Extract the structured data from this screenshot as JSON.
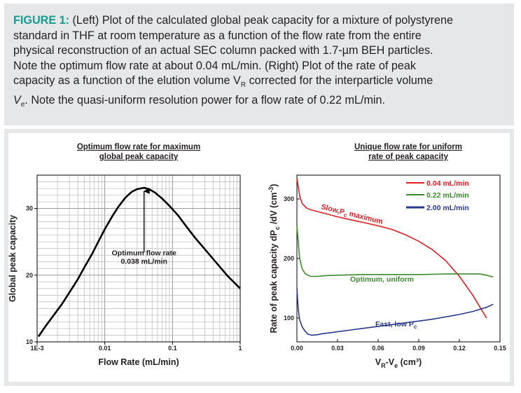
{
  "caption": {
    "label": "FIGURE 1:",
    "lines": [
      " (Left) Plot of the calculated global peak capacity for a mixture of polystyrene",
      "standard in THF at room temperature as a function of the flow rate from the entire",
      "physical reconstruction of an actual SEC column packed with 1.7-µm BEH particles.",
      "Note the optimum flow rate at about 0.04 mL/min. (Right) Plot of the rate of peak",
      "capacity as a function of the elution volume V",
      "R",
      " corrected for the interparticle volume",
      "V",
      "e",
      ". Note the quasi-uniform resolution power for a flow rate of 0.22 mL/min."
    ]
  },
  "chart_data": [
    {
      "type": "line",
      "title": "Optimum flow rate for maximum\nglobal peak capacity",
      "title_lines": [
        "Optimum flow rate for maximum",
        "global peak capacity"
      ],
      "xlabel": "Flow Rate (mL/min)",
      "ylabel": "Global peak capacity",
      "xscale": "log",
      "xlim": [
        0.001,
        1
      ],
      "ylim": [
        10,
        35
      ],
      "xticks": [
        0.001,
        0.01,
        0.1,
        1
      ],
      "xtick_labels": [
        "1E-3",
        "0.01",
        "0.1",
        "1"
      ],
      "yticks": [
        10,
        20,
        30
      ],
      "ytick_labels": [
        "10",
        "20",
        "30"
      ],
      "grid": true,
      "series": [
        {
          "color": "#000000",
          "x": [
            0.00105,
            0.0013,
            0.0017,
            0.0023,
            0.003,
            0.004,
            0.005,
            0.0065,
            0.008,
            0.01,
            0.013,
            0.016,
            0.02,
            0.025,
            0.03,
            0.038,
            0.045,
            0.055,
            0.07,
            0.09,
            0.12,
            0.16,
            0.22,
            0.3,
            0.45,
            0.65,
            1.0
          ],
          "y": [
            10.8,
            12.2,
            13.8,
            15.6,
            17.4,
            19.4,
            21.2,
            23.2,
            25.0,
            26.9,
            28.9,
            30.3,
            31.6,
            32.5,
            32.9,
            33.1,
            32.9,
            32.4,
            31.5,
            30.4,
            29.0,
            27.3,
            25.5,
            23.9,
            21.8,
            19.9,
            18.0
          ]
        }
      ],
      "annotations": [
        {
          "text_lines": [
            "Optimum flow rate",
            "0.038 mL/min"
          ],
          "x": 0.038,
          "arrow_from_y": 23.4,
          "arrow_to_y": 32.6
        }
      ]
    },
    {
      "type": "line",
      "title": "Unique flow rate for uniform\nrate of peak capacity",
      "title_lines": [
        "Unique flow rate for uniform",
        "rate of peak capacity"
      ],
      "xlabel": "VR-Ve (cm³)",
      "xlabel_parts": [
        "V",
        "R",
        "-V",
        "e",
        " (cm³)"
      ],
      "ylabel": "Rate of peak capacity dPc /dV (cm⁻³)",
      "ylabel_parts": [
        "Rate of peak capacity dP",
        "c",
        " /dV (cm",
        "-3",
        ")"
      ],
      "xlim": [
        0.0,
        0.15
      ],
      "ylim": [
        60,
        340
      ],
      "xticks": [
        0.0,
        0.03,
        0.06,
        0.09,
        0.12,
        0.15
      ],
      "xtick_labels": [
        "0.00",
        "0.03",
        "0.06",
        "0.09",
        "0.12",
        "0.15"
      ],
      "yticks": [
        100,
        200,
        300
      ],
      "ytick_labels": [
        "100",
        "200",
        "300"
      ],
      "grid": false,
      "legend_position": "top-right",
      "series": [
        {
          "name": "0.04 mL/min",
          "color": "#e31e24",
          "x": [
            0.0,
            0.002,
            0.004,
            0.007,
            0.01,
            0.015,
            0.02,
            0.03,
            0.04,
            0.05,
            0.06,
            0.07,
            0.08,
            0.09,
            0.1,
            0.11,
            0.12,
            0.13,
            0.14
          ],
          "y": [
            335,
            305,
            292,
            285,
            282,
            279,
            276,
            270,
            265,
            260,
            255,
            249,
            240,
            229,
            215,
            196,
            170,
            138,
            100
          ]
        },
        {
          "name": "0.22 mL/min",
          "color": "#3c8a2e",
          "x": [
            0.0,
            0.002,
            0.004,
            0.006,
            0.008,
            0.01,
            0.015,
            0.02,
            0.03,
            0.05,
            0.07,
            0.09,
            0.11,
            0.12,
            0.13,
            0.135,
            0.14,
            0.145
          ],
          "y": [
            255,
            200,
            182,
            175,
            172,
            170,
            170,
            171,
            172,
            173,
            173,
            173,
            174,
            174,
            174,
            174,
            172,
            169
          ]
        },
        {
          "name": "2.00 mL/min",
          "color": "#2b3a8f",
          "x": [
            0.0,
            0.001,
            0.002,
            0.004,
            0.006,
            0.008,
            0.011,
            0.015,
            0.02,
            0.03,
            0.04,
            0.05,
            0.06,
            0.07,
            0.08,
            0.09,
            0.1,
            0.11,
            0.12,
            0.13,
            0.14,
            0.145
          ],
          "y": [
            150,
            115,
            97,
            85,
            78,
            73,
            71,
            72,
            74,
            77,
            80,
            83,
            86,
            89,
            92,
            95,
            98,
            102,
            106,
            111,
            118,
            123
          ]
        }
      ],
      "annotations": [
        {
          "text": "Slow,",
          "sub_text": "",
          "tail_text": "",
          "color": "#e31e24"
        },
        {
          "text": "P",
          "sub_text": "c",
          "tail_text": " maximum",
          "color": "#e31e24"
        },
        {
          "text": "Optimum, uniform",
          "color": "#3c8a2e"
        },
        {
          "text": "Fast, low P",
          "sub_text": "c",
          "color": "#2b3a8f"
        }
      ]
    }
  ]
}
